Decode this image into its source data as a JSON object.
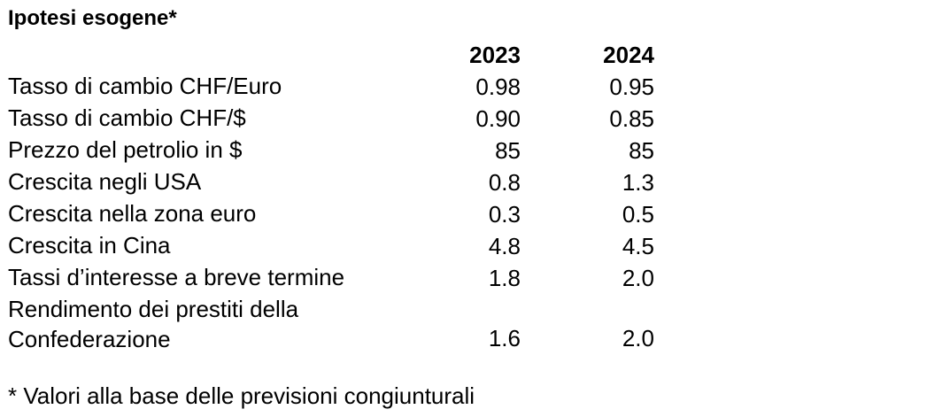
{
  "title": "Ipotesi esogene*",
  "columns": [
    "2023",
    "2024"
  ],
  "rows": [
    {
      "label": "Tasso di cambio CHF/Euro",
      "v2023": "0.98",
      "v2024": "0.95"
    },
    {
      "label": "Tasso di cambio CHF/$",
      "v2023": "0.90",
      "v2024": "0.85"
    },
    {
      "label": "Prezzo del petrolio in $",
      "v2023": "85",
      "v2024": "85"
    },
    {
      "label": "Crescita negli USA",
      "v2023": "0.8",
      "v2024": "1.3"
    },
    {
      "label": "Crescita nella zona euro",
      "v2023": "0.3",
      "v2024": "0.5"
    },
    {
      "label": "Crescita in Cina",
      "v2023": "4.8",
      "v2024": "4.5"
    },
    {
      "label": "Tassi d’interesse a breve termine",
      "v2023": "1.8",
      "v2024": "2.0"
    },
    {
      "label": "Rendimento dei prestiti della\nConfederazione",
      "v2023": "1.6",
      "v2024": "2.0"
    }
  ],
  "footnote": "* Valori alla base delle previsioni congiunturali"
}
